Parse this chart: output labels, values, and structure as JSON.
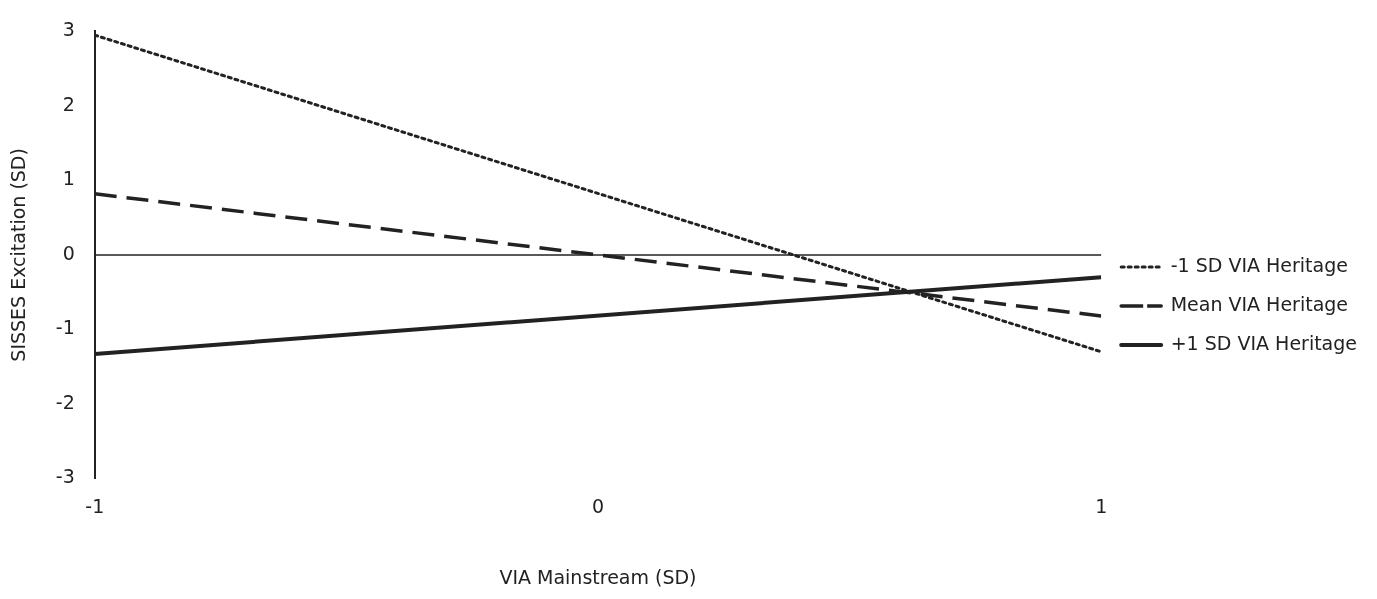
{
  "chart_data": {
    "type": "line",
    "xlabel": "VIA Mainstream (SD)",
    "ylabel": "SISSES Excitation (SD)",
    "x": [
      -1,
      1
    ],
    "xlim": [
      -1,
      1
    ],
    "xticks": [
      -1,
      0,
      1
    ],
    "ylim": [
      -3,
      3
    ],
    "yticks": [
      -3,
      -2,
      -1,
      0,
      1,
      2,
      3
    ],
    "series": [
      {
        "name": "-1 SD VIA Heritage",
        "color": "#222222",
        "values": [
          2.95,
          -1.3
        ],
        "line_style": "dotted"
      },
      {
        "name": "Mean VIA Heritage",
        "color": "#222222",
        "values": [
          0.82,
          -0.82
        ],
        "line_style": "dashed"
      },
      {
        "name": "+1 SD VIA Heritage",
        "color": "#222222",
        "values": [
          -1.33,
          -0.3
        ],
        "line_style": "solid"
      }
    ],
    "ref_lines": [
      {
        "axis": "y",
        "value": 0,
        "color": "#222222"
      }
    ],
    "grid": false,
    "legend": "right",
    "marker": "none"
  }
}
